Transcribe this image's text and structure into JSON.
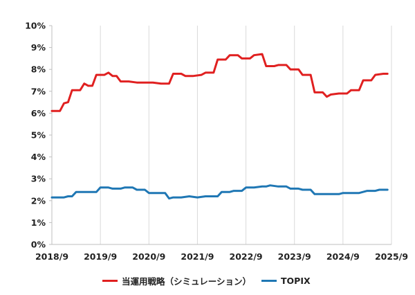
{
  "chart_data": {
    "type": "line",
    "title": "",
    "xlabel": "",
    "ylabel": "",
    "ylim": [
      0,
      10
    ],
    "y_unit": "%",
    "y_ticks": [
      "0%",
      "1%",
      "2%",
      "3%",
      "4%",
      "5%",
      "6%",
      "7%",
      "8%",
      "9%",
      "10%"
    ],
    "x_ticks": [
      "2018/9",
      "2019/9",
      "2020/9",
      "2021/9",
      "2022/9",
      "2023/9",
      "2024/9",
      "2025/9"
    ],
    "grid": "vertical",
    "legend_placement": "bottom",
    "series": [
      {
        "name": "当運用戦略（シミュレーション）",
        "color": "#e02020",
        "points": [
          [
            "2018/9",
            6.1
          ],
          [
            "2018/11",
            6.1
          ],
          [
            "2018/12",
            6.45
          ],
          [
            "2019/1",
            6.5
          ],
          [
            "2019/2",
            7.05
          ],
          [
            "2019/4",
            7.05
          ],
          [
            "2019/5",
            7.35
          ],
          [
            "2019/6",
            7.25
          ],
          [
            "2019/7",
            7.25
          ],
          [
            "2019/8",
            7.75
          ],
          [
            "2019/10",
            7.75
          ],
          [
            "2019/11",
            7.85
          ],
          [
            "2019/12",
            7.7
          ],
          [
            "2020/1",
            7.7
          ],
          [
            "2020/2",
            7.45
          ],
          [
            "2020/4",
            7.45
          ],
          [
            "2020/6",
            7.4
          ],
          [
            "2020/8",
            7.4
          ],
          [
            "2020/10",
            7.4
          ],
          [
            "2020/12",
            7.35
          ],
          [
            "2021/2",
            7.35
          ],
          [
            "2021/3",
            7.8
          ],
          [
            "2021/5",
            7.8
          ],
          [
            "2021/6",
            7.7
          ],
          [
            "2021/8",
            7.7
          ],
          [
            "2021/10",
            7.75
          ],
          [
            "2021/11",
            7.85
          ],
          [
            "2022/1",
            7.85
          ],
          [
            "2022/2",
            8.45
          ],
          [
            "2022/4",
            8.45
          ],
          [
            "2022/5",
            8.65
          ],
          [
            "2022/7",
            8.65
          ],
          [
            "2022/8",
            8.5
          ],
          [
            "2022/10",
            8.5
          ],
          [
            "2022/11",
            8.65
          ],
          [
            "2023/1",
            8.7
          ],
          [
            "2023/2",
            8.15
          ],
          [
            "2023/4",
            8.15
          ],
          [
            "2023/5",
            8.2
          ],
          [
            "2023/7",
            8.2
          ],
          [
            "2023/8",
            8.0
          ],
          [
            "2023/10",
            8.0
          ],
          [
            "2023/11",
            7.75
          ],
          [
            "2024/1",
            7.75
          ],
          [
            "2024/2",
            6.95
          ],
          [
            "2024/4",
            6.95
          ],
          [
            "2024/5",
            6.75
          ],
          [
            "2024/6",
            6.85
          ],
          [
            "2024/8",
            6.9
          ],
          [
            "2024/10",
            6.9
          ],
          [
            "2024/11",
            7.05
          ],
          [
            "2025/1",
            7.05
          ],
          [
            "2025/2",
            7.5
          ],
          [
            "2025/4",
            7.5
          ],
          [
            "2025/5",
            7.75
          ],
          [
            "2025/7",
            7.8
          ],
          [
            "2025/8",
            7.8
          ]
        ]
      },
      {
        "name": "TOPIX",
        "color": "#1f77b4",
        "points": [
          [
            "2018/9",
            2.15
          ],
          [
            "2018/12",
            2.15
          ],
          [
            "2019/1",
            2.2
          ],
          [
            "2019/2",
            2.2
          ],
          [
            "2019/3",
            2.4
          ],
          [
            "2019/5",
            2.4
          ],
          [
            "2019/6",
            2.4
          ],
          [
            "2019/8",
            2.4
          ],
          [
            "2019/9",
            2.6
          ],
          [
            "2019/11",
            2.6
          ],
          [
            "2019/12",
            2.55
          ],
          [
            "2020/2",
            2.55
          ],
          [
            "2020/3",
            2.6
          ],
          [
            "2020/5",
            2.6
          ],
          [
            "2020/6",
            2.5
          ],
          [
            "2020/8",
            2.5
          ],
          [
            "2020/9",
            2.35
          ],
          [
            "2020/11",
            2.35
          ],
          [
            "2021/1",
            2.35
          ],
          [
            "2021/2",
            2.1
          ],
          [
            "2021/3",
            2.15
          ],
          [
            "2021/5",
            2.15
          ],
          [
            "2021/7",
            2.2
          ],
          [
            "2021/9",
            2.15
          ],
          [
            "2021/11",
            2.2
          ],
          [
            "2022/2",
            2.2
          ],
          [
            "2022/3",
            2.4
          ],
          [
            "2022/5",
            2.4
          ],
          [
            "2022/6",
            2.45
          ],
          [
            "2022/8",
            2.45
          ],
          [
            "2022/9",
            2.6
          ],
          [
            "2022/11",
            2.6
          ],
          [
            "2023/1",
            2.65
          ],
          [
            "2023/2",
            2.65
          ],
          [
            "2023/3",
            2.7
          ],
          [
            "2023/5",
            2.65
          ],
          [
            "2023/7",
            2.65
          ],
          [
            "2023/8",
            2.55
          ],
          [
            "2023/10",
            2.55
          ],
          [
            "2023/11",
            2.5
          ],
          [
            "2024/1",
            2.5
          ],
          [
            "2024/2",
            2.3
          ],
          [
            "2024/4",
            2.3
          ],
          [
            "2024/5",
            2.3
          ],
          [
            "2024/8",
            2.3
          ],
          [
            "2024/9",
            2.35
          ],
          [
            "2024/12",
            2.35
          ],
          [
            "2025/1",
            2.35
          ],
          [
            "2025/3",
            2.45
          ],
          [
            "2025/5",
            2.45
          ],
          [
            "2025/6",
            2.5
          ],
          [
            "2025/8",
            2.5
          ]
        ]
      }
    ]
  }
}
